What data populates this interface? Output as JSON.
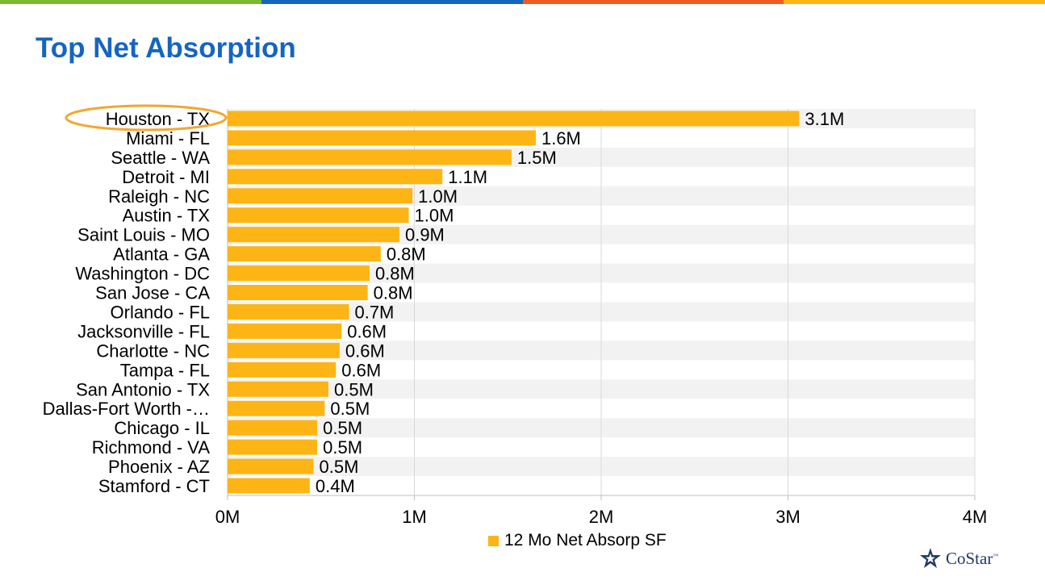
{
  "page": {
    "title": "Top Net Absorption",
    "brand_colors": [
      "#7cb82f",
      "#1565c0",
      "#f05a1e",
      "#fdb515"
    ]
  },
  "chart_data": {
    "type": "bar",
    "orientation": "horizontal",
    "categories": [
      "Houston - TX",
      "Miami - FL",
      "Seattle - WA",
      "Detroit - MI",
      "Raleigh - NC",
      "Austin - TX",
      "Saint Louis - MO",
      "Atlanta - GA",
      "Washington - DC",
      "San Jose - CA",
      "Orlando - FL",
      "Jacksonville - FL",
      "Charlotte - NC",
      "Tampa - FL",
      "San Antonio - TX",
      "Dallas-Fort Worth -…",
      "Chicago - IL",
      "Richmond - VA",
      "Phoenix - AZ",
      "Stamford - CT"
    ],
    "series": [
      {
        "name": "12 Mo Net Absorp SF",
        "values": [
          3.06,
          1.65,
          1.52,
          1.15,
          0.99,
          0.97,
          0.92,
          0.82,
          0.76,
          0.75,
          0.65,
          0.61,
          0.6,
          0.58,
          0.54,
          0.52,
          0.48,
          0.48,
          0.46,
          0.44
        ],
        "labels": [
          "3.1M",
          "1.6M",
          "1.5M",
          "1.1M",
          "1.0M",
          "1.0M",
          "0.9M",
          "0.8M",
          "0.8M",
          "0.8M",
          "0.7M",
          "0.6M",
          "0.6M",
          "0.6M",
          "0.5M",
          "0.5M",
          "0.5M",
          "0.5M",
          "0.5M",
          "0.4M"
        ],
        "color": "#fdb515"
      }
    ],
    "xlim": [
      0,
      4
    ],
    "xticks": [
      0,
      1,
      2,
      3,
      4
    ],
    "xtick_labels": [
      "0M",
      "1M",
      "2M",
      "3M",
      "4M"
    ],
    "grid": true,
    "highlighted_category": "Houston - TX",
    "highlight_color": "#f0a830",
    "legend_position": "bottom"
  },
  "footer": {
    "logo_text": "CoStar",
    "logo_mark": "™"
  }
}
